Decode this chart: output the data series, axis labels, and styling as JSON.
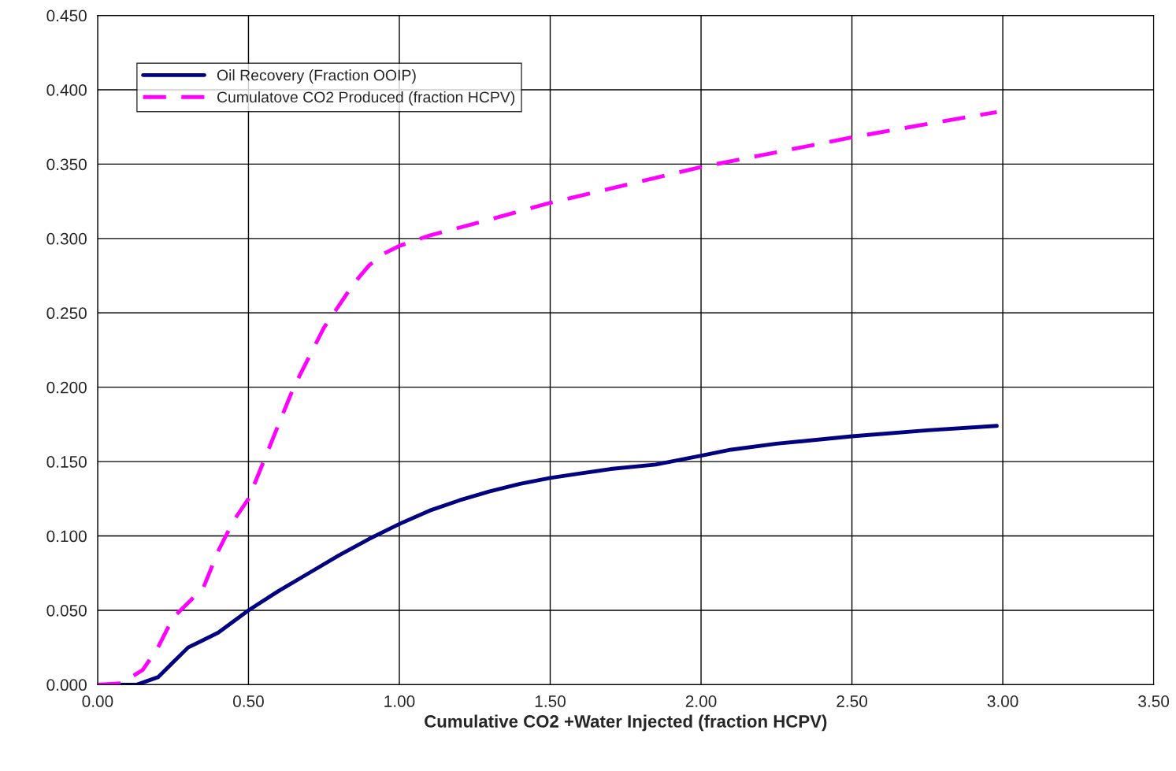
{
  "chart_data": {
    "type": "line",
    "xlabel": "Cumulative CO2 +Water Injected (fraction HCPV)",
    "xlim": [
      0,
      3.5
    ],
    "ylim": [
      0,
      0.45
    ],
    "xticks": [
      {
        "value": 0,
        "label": "0.00"
      },
      {
        "value": 0.5,
        "label": "0.50"
      },
      {
        "value": 1,
        "label": "1.00"
      },
      {
        "value": 1.5,
        "label": "1.50"
      },
      {
        "value": 2,
        "label": "2.00"
      },
      {
        "value": 2.5,
        "label": "2.50"
      },
      {
        "value": 3,
        "label": "3.00"
      },
      {
        "value": 3.5,
        "label": "3.50"
      }
    ],
    "yticks": [
      {
        "value": 0,
        "label": "0.000"
      },
      {
        "value": 0.05,
        "label": "0.050"
      },
      {
        "value": 0.1,
        "label": "0.100"
      },
      {
        "value": 0.15,
        "label": "0.150"
      },
      {
        "value": 0.2,
        "label": "0.200"
      },
      {
        "value": 0.25,
        "label": "0.250"
      },
      {
        "value": 0.3,
        "label": "0.300"
      },
      {
        "value": 0.35,
        "label": "0.350"
      },
      {
        "value": 0.4,
        "label": "0.400"
      },
      {
        "value": 0.45,
        "label": "0.450"
      }
    ],
    "grid": true,
    "legend": "top left",
    "marker": "none",
    "series": [
      {
        "name": "Oil Recovery (Fraction OOIP)",
        "color": "#000080",
        "line_style": "solid",
        "x": [
          0,
          0.13,
          0.2,
          0.25,
          0.3,
          0.4,
          0.5,
          0.6,
          0.7,
          0.8,
          0.9,
          1.0,
          1.1,
          1.2,
          1.3,
          1.4,
          1.5,
          1.6,
          1.7,
          1.85,
          2.0,
          2.1,
          2.25,
          2.5,
          2.75,
          2.98
        ],
        "values": [
          0,
          0,
          0.005,
          0.015,
          0.025,
          0.035,
          0.05,
          0.063,
          0.075,
          0.087,
          0.098,
          0.108,
          0.117,
          0.124,
          0.13,
          0.135,
          0.139,
          0.142,
          0.145,
          0.148,
          0.154,
          0.158,
          0.162,
          0.167,
          0.171,
          0.174
        ]
      },
      {
        "name": "Cumulatove CO2 Produced (fraction HCPV)",
        "color": "#ff00ff",
        "line_style": "dashed",
        "x": [
          0,
          0.08,
          0.15,
          0.2,
          0.25,
          0.3,
          0.35,
          0.4,
          0.45,
          0.5,
          0.55,
          0.6,
          0.65,
          0.7,
          0.75,
          0.8,
          0.85,
          0.9,
          0.95,
          1.0,
          1.1,
          1.25,
          1.5,
          1.75,
          2.0,
          2.25,
          2.5,
          2.75,
          2.98
        ],
        "values": [
          0,
          0.001,
          0.01,
          0.025,
          0.045,
          0.055,
          0.065,
          0.09,
          0.11,
          0.125,
          0.15,
          0.175,
          0.2,
          0.22,
          0.24,
          0.255,
          0.27,
          0.282,
          0.29,
          0.295,
          0.302,
          0.31,
          0.324,
          0.336,
          0.348,
          0.358,
          0.368,
          0.377,
          0.385
        ]
      }
    ]
  }
}
